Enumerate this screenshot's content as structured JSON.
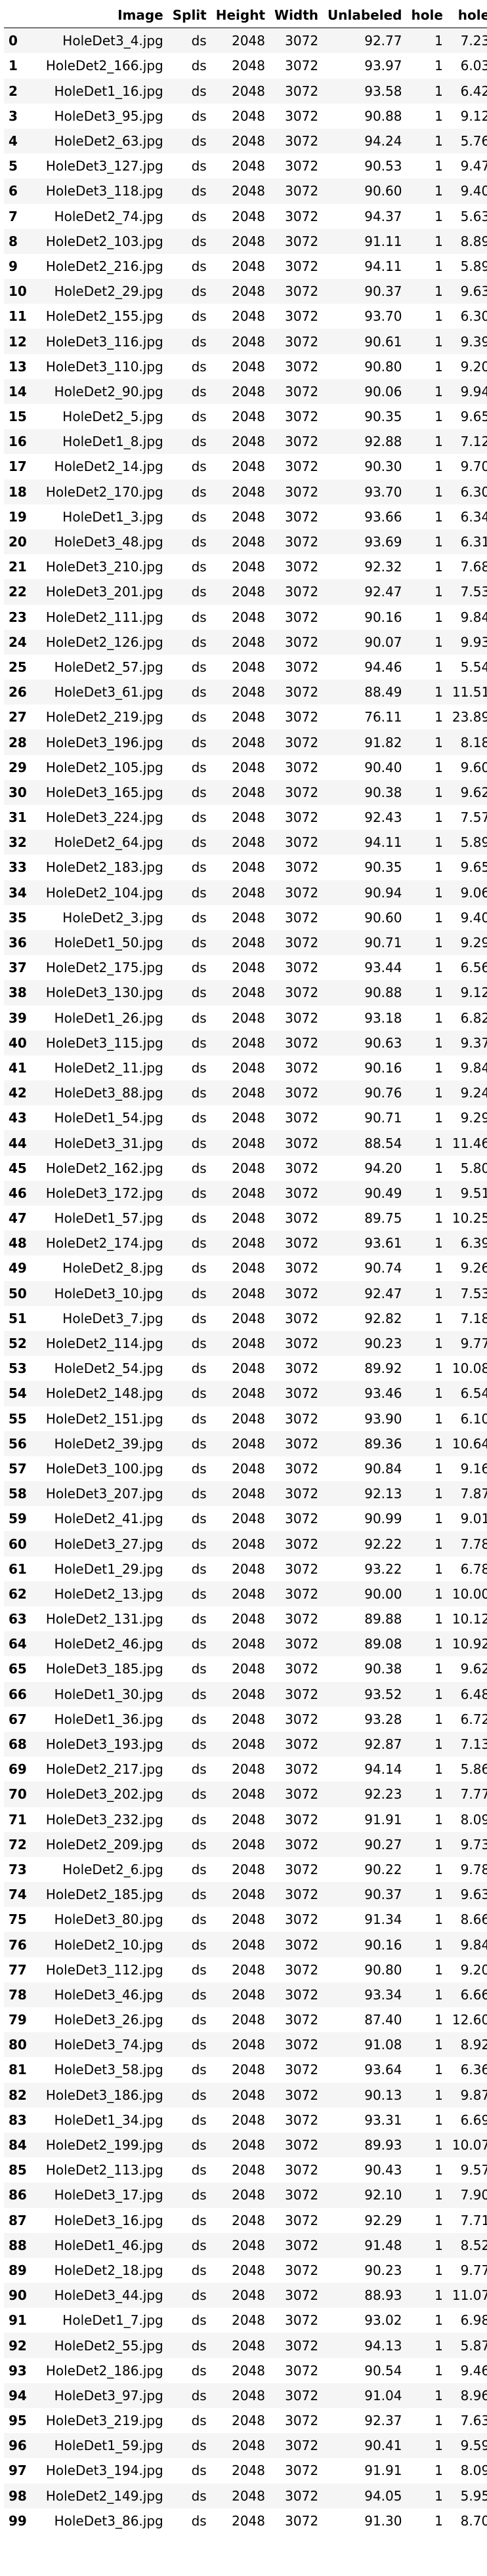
{
  "table": {
    "headers": [
      "",
      "Image",
      "Split",
      "Height",
      "Width",
      "Unlabeled",
      "hole",
      "hole"
    ],
    "rows": [
      [
        "0",
        "HoleDet3_4.jpg",
        "ds",
        "2048",
        "3072",
        "92.77",
        "1",
        "7.23"
      ],
      [
        "1",
        "HoleDet2_166.jpg",
        "ds",
        "2048",
        "3072",
        "93.97",
        "1",
        "6.03"
      ],
      [
        "2",
        "HoleDet1_16.jpg",
        "ds",
        "2048",
        "3072",
        "93.58",
        "1",
        "6.42"
      ],
      [
        "3",
        "HoleDet3_95.jpg",
        "ds",
        "2048",
        "3072",
        "90.88",
        "1",
        "9.12"
      ],
      [
        "4",
        "HoleDet2_63.jpg",
        "ds",
        "2048",
        "3072",
        "94.24",
        "1",
        "5.76"
      ],
      [
        "5",
        "HoleDet3_127.jpg",
        "ds",
        "2048",
        "3072",
        "90.53",
        "1",
        "9.47"
      ],
      [
        "6",
        "HoleDet3_118.jpg",
        "ds",
        "2048",
        "3072",
        "90.60",
        "1",
        "9.40"
      ],
      [
        "7",
        "HoleDet2_74.jpg",
        "ds",
        "2048",
        "3072",
        "94.37",
        "1",
        "5.63"
      ],
      [
        "8",
        "HoleDet2_103.jpg",
        "ds",
        "2048",
        "3072",
        "91.11",
        "1",
        "8.89"
      ],
      [
        "9",
        "HoleDet2_216.jpg",
        "ds",
        "2048",
        "3072",
        "94.11",
        "1",
        "5.89"
      ],
      [
        "10",
        "HoleDet2_29.jpg",
        "ds",
        "2048",
        "3072",
        "90.37",
        "1",
        "9.63"
      ],
      [
        "11",
        "HoleDet2_155.jpg",
        "ds",
        "2048",
        "3072",
        "93.70",
        "1",
        "6.30"
      ],
      [
        "12",
        "HoleDet3_116.jpg",
        "ds",
        "2048",
        "3072",
        "90.61",
        "1",
        "9.39"
      ],
      [
        "13",
        "HoleDet3_110.jpg",
        "ds",
        "2048",
        "3072",
        "90.80",
        "1",
        "9.20"
      ],
      [
        "14",
        "HoleDet2_90.jpg",
        "ds",
        "2048",
        "3072",
        "90.06",
        "1",
        "9.94"
      ],
      [
        "15",
        "HoleDet2_5.jpg",
        "ds",
        "2048",
        "3072",
        "90.35",
        "1",
        "9.65"
      ],
      [
        "16",
        "HoleDet1_8.jpg",
        "ds",
        "2048",
        "3072",
        "92.88",
        "1",
        "7.12"
      ],
      [
        "17",
        "HoleDet2_14.jpg",
        "ds",
        "2048",
        "3072",
        "90.30",
        "1",
        "9.70"
      ],
      [
        "18",
        "HoleDet2_170.jpg",
        "ds",
        "2048",
        "3072",
        "93.70",
        "1",
        "6.30"
      ],
      [
        "19",
        "HoleDet1_3.jpg",
        "ds",
        "2048",
        "3072",
        "93.66",
        "1",
        "6.34"
      ],
      [
        "20",
        "HoleDet3_48.jpg",
        "ds",
        "2048",
        "3072",
        "93.69",
        "1",
        "6.31"
      ],
      [
        "21",
        "HoleDet3_210.jpg",
        "ds",
        "2048",
        "3072",
        "92.32",
        "1",
        "7.68"
      ],
      [
        "22",
        "HoleDet3_201.jpg",
        "ds",
        "2048",
        "3072",
        "92.47",
        "1",
        "7.53"
      ],
      [
        "23",
        "HoleDet2_111.jpg",
        "ds",
        "2048",
        "3072",
        "90.16",
        "1",
        "9.84"
      ],
      [
        "24",
        "HoleDet2_126.jpg",
        "ds",
        "2048",
        "3072",
        "90.07",
        "1",
        "9.93"
      ],
      [
        "25",
        "HoleDet2_57.jpg",
        "ds",
        "2048",
        "3072",
        "94.46",
        "1",
        "5.54"
      ],
      [
        "26",
        "HoleDet3_61.jpg",
        "ds",
        "2048",
        "3072",
        "88.49",
        "1",
        "11.51"
      ],
      [
        "27",
        "HoleDet2_219.jpg",
        "ds",
        "2048",
        "3072",
        "76.11",
        "1",
        "23.89"
      ],
      [
        "28",
        "HoleDet3_196.jpg",
        "ds",
        "2048",
        "3072",
        "91.82",
        "1",
        "8.18"
      ],
      [
        "29",
        "HoleDet2_105.jpg",
        "ds",
        "2048",
        "3072",
        "90.40",
        "1",
        "9.60"
      ],
      [
        "30",
        "HoleDet3_165.jpg",
        "ds",
        "2048",
        "3072",
        "90.38",
        "1",
        "9.62"
      ],
      [
        "31",
        "HoleDet3_224.jpg",
        "ds",
        "2048",
        "3072",
        "92.43",
        "1",
        "7.57"
      ],
      [
        "32",
        "HoleDet2_64.jpg",
        "ds",
        "2048",
        "3072",
        "94.11",
        "1",
        "5.89"
      ],
      [
        "33",
        "HoleDet2_183.jpg",
        "ds",
        "2048",
        "3072",
        "90.35",
        "1",
        "9.65"
      ],
      [
        "34",
        "HoleDet2_104.jpg",
        "ds",
        "2048",
        "3072",
        "90.94",
        "1",
        "9.06"
      ],
      [
        "35",
        "HoleDet2_3.jpg",
        "ds",
        "2048",
        "3072",
        "90.60",
        "1",
        "9.40"
      ],
      [
        "36",
        "HoleDet1_50.jpg",
        "ds",
        "2048",
        "3072",
        "90.71",
        "1",
        "9.29"
      ],
      [
        "37",
        "HoleDet2_175.jpg",
        "ds",
        "2048",
        "3072",
        "93.44",
        "1",
        "6.56"
      ],
      [
        "38",
        "HoleDet3_130.jpg",
        "ds",
        "2048",
        "3072",
        "90.88",
        "1",
        "9.12"
      ],
      [
        "39",
        "HoleDet1_26.jpg",
        "ds",
        "2048",
        "3072",
        "93.18",
        "1",
        "6.82"
      ],
      [
        "40",
        "HoleDet3_115.jpg",
        "ds",
        "2048",
        "3072",
        "90.63",
        "1",
        "9.37"
      ],
      [
        "41",
        "HoleDet2_11.jpg",
        "ds",
        "2048",
        "3072",
        "90.16",
        "1",
        "9.84"
      ],
      [
        "42",
        "HoleDet3_88.jpg",
        "ds",
        "2048",
        "3072",
        "90.76",
        "1",
        "9.24"
      ],
      [
        "43",
        "HoleDet1_54.jpg",
        "ds",
        "2048",
        "3072",
        "90.71",
        "1",
        "9.29"
      ],
      [
        "44",
        "HoleDet3_31.jpg",
        "ds",
        "2048",
        "3072",
        "88.54",
        "1",
        "11.46"
      ],
      [
        "45",
        "HoleDet2_162.jpg",
        "ds",
        "2048",
        "3072",
        "94.20",
        "1",
        "5.80"
      ],
      [
        "46",
        "HoleDet3_172.jpg",
        "ds",
        "2048",
        "3072",
        "90.49",
        "1",
        "9.51"
      ],
      [
        "47",
        "HoleDet1_57.jpg",
        "ds",
        "2048",
        "3072",
        "89.75",
        "1",
        "10.25"
      ],
      [
        "48",
        "HoleDet2_174.jpg",
        "ds",
        "2048",
        "3072",
        "93.61",
        "1",
        "6.39"
      ],
      [
        "49",
        "HoleDet2_8.jpg",
        "ds",
        "2048",
        "3072",
        "90.74",
        "1",
        "9.26"
      ],
      [
        "50",
        "HoleDet3_10.jpg",
        "ds",
        "2048",
        "3072",
        "92.47",
        "1",
        "7.53"
      ],
      [
        "51",
        "HoleDet3_7.jpg",
        "ds",
        "2048",
        "3072",
        "92.82",
        "1",
        "7.18"
      ],
      [
        "52",
        "HoleDet2_114.jpg",
        "ds",
        "2048",
        "3072",
        "90.23",
        "1",
        "9.77"
      ],
      [
        "53",
        "HoleDet2_54.jpg",
        "ds",
        "2048",
        "3072",
        "89.92",
        "1",
        "10.08"
      ],
      [
        "54",
        "HoleDet2_148.jpg",
        "ds",
        "2048",
        "3072",
        "93.46",
        "1",
        "6.54"
      ],
      [
        "55",
        "HoleDet2_151.jpg",
        "ds",
        "2048",
        "3072",
        "93.90",
        "1",
        "6.10"
      ],
      [
        "56",
        "HoleDet2_39.jpg",
        "ds",
        "2048",
        "3072",
        "89.36",
        "1",
        "10.64"
      ],
      [
        "57",
        "HoleDet3_100.jpg",
        "ds",
        "2048",
        "3072",
        "90.84",
        "1",
        "9.16"
      ],
      [
        "58",
        "HoleDet3_207.jpg",
        "ds",
        "2048",
        "3072",
        "92.13",
        "1",
        "7.87"
      ],
      [
        "59",
        "HoleDet2_41.jpg",
        "ds",
        "2048",
        "3072",
        "90.99",
        "1",
        "9.01"
      ],
      [
        "60",
        "HoleDet3_27.jpg",
        "ds",
        "2048",
        "3072",
        "92.22",
        "1",
        "7.78"
      ],
      [
        "61",
        "HoleDet1_29.jpg",
        "ds",
        "2048",
        "3072",
        "93.22",
        "1",
        "6.78"
      ],
      [
        "62",
        "HoleDet2_13.jpg",
        "ds",
        "2048",
        "3072",
        "90.00",
        "1",
        "10.00"
      ],
      [
        "63",
        "HoleDet2_131.jpg",
        "ds",
        "2048",
        "3072",
        "89.88",
        "1",
        "10.12"
      ],
      [
        "64",
        "HoleDet2_46.jpg",
        "ds",
        "2048",
        "3072",
        "89.08",
        "1",
        "10.92"
      ],
      [
        "65",
        "HoleDet3_185.jpg",
        "ds",
        "2048",
        "3072",
        "90.38",
        "1",
        "9.62"
      ],
      [
        "66",
        "HoleDet1_30.jpg",
        "ds",
        "2048",
        "3072",
        "93.52",
        "1",
        "6.48"
      ],
      [
        "67",
        "HoleDet1_36.jpg",
        "ds",
        "2048",
        "3072",
        "93.28",
        "1",
        "6.72"
      ],
      [
        "68",
        "HoleDet3_193.jpg",
        "ds",
        "2048",
        "3072",
        "92.87",
        "1",
        "7.13"
      ],
      [
        "69",
        "HoleDet2_217.jpg",
        "ds",
        "2048",
        "3072",
        "94.14",
        "1",
        "5.86"
      ],
      [
        "70",
        "HoleDet3_202.jpg",
        "ds",
        "2048",
        "3072",
        "92.23",
        "1",
        "7.77"
      ],
      [
        "71",
        "HoleDet3_232.jpg",
        "ds",
        "2048",
        "3072",
        "91.91",
        "1",
        "8.09"
      ],
      [
        "72",
        "HoleDet2_209.jpg",
        "ds",
        "2048",
        "3072",
        "90.27",
        "1",
        "9.73"
      ],
      [
        "73",
        "HoleDet2_6.jpg",
        "ds",
        "2048",
        "3072",
        "90.22",
        "1",
        "9.78"
      ],
      [
        "74",
        "HoleDet2_185.jpg",
        "ds",
        "2048",
        "3072",
        "90.37",
        "1",
        "9.63"
      ],
      [
        "75",
        "HoleDet3_80.jpg",
        "ds",
        "2048",
        "3072",
        "91.34",
        "1",
        "8.66"
      ],
      [
        "76",
        "HoleDet2_10.jpg",
        "ds",
        "2048",
        "3072",
        "90.16",
        "1",
        "9.84"
      ],
      [
        "77",
        "HoleDet3_112.jpg",
        "ds",
        "2048",
        "3072",
        "90.80",
        "1",
        "9.20"
      ],
      [
        "78",
        "HoleDet3_46.jpg",
        "ds",
        "2048",
        "3072",
        "93.34",
        "1",
        "6.66"
      ],
      [
        "79",
        "HoleDet3_26.jpg",
        "ds",
        "2048",
        "3072",
        "87.40",
        "1",
        "12.60"
      ],
      [
        "80",
        "HoleDet3_74.jpg",
        "ds",
        "2048",
        "3072",
        "91.08",
        "1",
        "8.92"
      ],
      [
        "81",
        "HoleDet3_58.jpg",
        "ds",
        "2048",
        "3072",
        "93.64",
        "1",
        "6.36"
      ],
      [
        "82",
        "HoleDet3_186.jpg",
        "ds",
        "2048",
        "3072",
        "90.13",
        "1",
        "9.87"
      ],
      [
        "83",
        "HoleDet1_34.jpg",
        "ds",
        "2048",
        "3072",
        "93.31",
        "1",
        "6.69"
      ],
      [
        "84",
        "HoleDet2_199.jpg",
        "ds",
        "2048",
        "3072",
        "89.93",
        "1",
        "10.07"
      ],
      [
        "85",
        "HoleDet2_113.jpg",
        "ds",
        "2048",
        "3072",
        "90.43",
        "1",
        "9.57"
      ],
      [
        "86",
        "HoleDet3_17.jpg",
        "ds",
        "2048",
        "3072",
        "92.10",
        "1",
        "7.90"
      ],
      [
        "87",
        "HoleDet3_16.jpg",
        "ds",
        "2048",
        "3072",
        "92.29",
        "1",
        "7.71"
      ],
      [
        "88",
        "HoleDet1_46.jpg",
        "ds",
        "2048",
        "3072",
        "91.48",
        "1",
        "8.52"
      ],
      [
        "89",
        "HoleDet2_18.jpg",
        "ds",
        "2048",
        "3072",
        "90.23",
        "1",
        "9.77"
      ],
      [
        "90",
        "HoleDet3_44.jpg",
        "ds",
        "2048",
        "3072",
        "88.93",
        "1",
        "11.07"
      ],
      [
        "91",
        "HoleDet1_7.jpg",
        "ds",
        "2048",
        "3072",
        "93.02",
        "1",
        "6.98"
      ],
      [
        "92",
        "HoleDet2_55.jpg",
        "ds",
        "2048",
        "3072",
        "94.13",
        "1",
        "5.87"
      ],
      [
        "93",
        "HoleDet2_186.jpg",
        "ds",
        "2048",
        "3072",
        "90.54",
        "1",
        "9.46"
      ],
      [
        "94",
        "HoleDet3_97.jpg",
        "ds",
        "2048",
        "3072",
        "91.04",
        "1",
        "8.96"
      ],
      [
        "95",
        "HoleDet3_219.jpg",
        "ds",
        "2048",
        "3072",
        "92.37",
        "1",
        "7.63"
      ],
      [
        "96",
        "HoleDet1_59.jpg",
        "ds",
        "2048",
        "3072",
        "90.41",
        "1",
        "9.59"
      ],
      [
        "97",
        "HoleDet3_194.jpg",
        "ds",
        "2048",
        "3072",
        "91.91",
        "1",
        "8.09"
      ],
      [
        "98",
        "HoleDet2_149.jpg",
        "ds",
        "2048",
        "3072",
        "94.05",
        "1",
        "5.95"
      ],
      [
        "99",
        "HoleDet3_86.jpg",
        "ds",
        "2048",
        "3072",
        "91.30",
        "1",
        "8.70"
      ]
    ]
  }
}
